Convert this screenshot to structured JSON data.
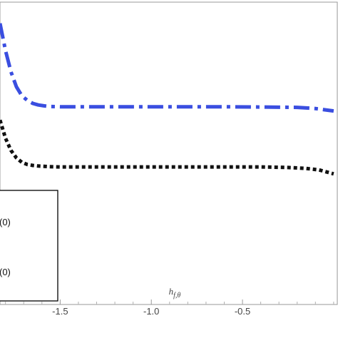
{
  "chart_data": {
    "type": "line",
    "xlabel": "h_{f,θ}",
    "xlim": [
      -1.83,
      0.02
    ],
    "ylim": [
      0,
      1
    ],
    "x_ticks": [
      -1.5,
      -1.0,
      -0.5
    ],
    "x_tick_labels": [
      "-1.5",
      "-1.0",
      "-0.5"
    ],
    "grid": false,
    "legend_placement": "bottom-left",
    "legend_entries": [
      "(0)",
      "(0)"
    ],
    "series": [
      {
        "style": "dash-dot",
        "color": "#3a4ee0",
        "x": [
          -1.83,
          -1.8,
          -1.77,
          -1.74,
          -1.71,
          -1.68,
          -1.65,
          -1.62,
          -1.59,
          -1.56,
          -1.5,
          -1.4,
          -1.2,
          -1.0,
          -0.8,
          -0.6,
          -0.4,
          -0.2,
          -0.1,
          0.0
        ],
        "y": [
          0.93,
          0.84,
          0.77,
          0.72,
          0.69,
          0.675,
          0.665,
          0.66,
          0.657,
          0.655,
          0.654,
          0.654,
          0.654,
          0.654,
          0.654,
          0.654,
          0.653,
          0.652,
          0.648,
          0.64
        ]
      },
      {
        "style": "dotted",
        "color": "#111111",
        "x": [
          -1.83,
          -1.8,
          -1.77,
          -1.74,
          -1.71,
          -1.68,
          -1.65,
          -1.62,
          -1.59,
          -1.56,
          -1.5,
          -1.4,
          -1.2,
          -1.0,
          -0.8,
          -0.6,
          -0.4,
          -0.25,
          -0.15,
          -0.08,
          0.0
        ],
        "y": [
          0.61,
          0.55,
          0.51,
          0.485,
          0.47,
          0.463,
          0.46,
          0.458,
          0.457,
          0.456,
          0.455,
          0.455,
          0.455,
          0.455,
          0.455,
          0.455,
          0.455,
          0.453,
          0.45,
          0.445,
          0.432
        ]
      }
    ]
  }
}
